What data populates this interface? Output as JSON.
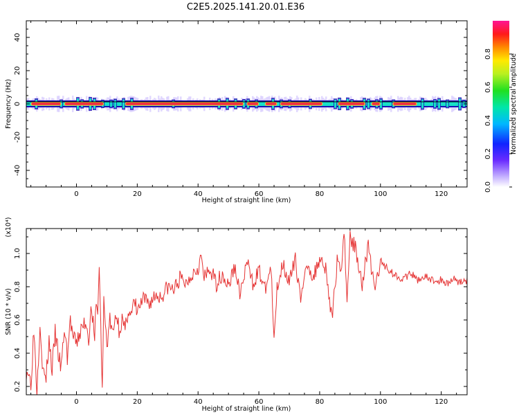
{
  "title": "C2E5.2025.141.20.01.E36",
  "colors": {
    "snr_line": "#e53333",
    "band_base": "#1a12b4",
    "band_mid": "#18e0c8",
    "band_hi": "#ffd12a",
    "band_peak": "#ee2244",
    "halo": "#c9b8ff"
  },
  "chart_data": [
    {
      "type": "heatmap",
      "title": "C2E5.2025.141.20.01.E36",
      "xlabel": "Height of straight line (km)",
      "ylabel": "Frequency (Hz)",
      "xlim": [
        -16.5,
        128.5
      ],
      "ylim": [
        -50,
        50
      ],
      "xticks": [
        0,
        20,
        40,
        60,
        80,
        100,
        120
      ],
      "yticks": [
        -40,
        -20,
        0,
        20,
        40
      ],
      "grid": false,
      "colorbar": {
        "label": "Normalized spectral amplitude",
        "range": [
          0,
          1
        ],
        "ticks": [
          "0.0",
          "0.2",
          "0.4",
          "0.6",
          "0.8"
        ],
        "colormap": "rainbow (violet → blue → cyan → green → yellow → red → magenta)"
      },
      "band_center_hz": 0,
      "peak_segments_km": [
        [
          -15,
          -5
        ],
        [
          -4,
          9
        ],
        [
          16,
          55
        ],
        [
          56,
          60
        ],
        [
          62,
          66
        ],
        [
          67,
          81
        ],
        [
          86,
          95
        ],
        [
          97,
          100
        ],
        [
          104,
          112
        ]
      ]
    },
    {
      "type": "line",
      "xlabel": "Height of straight line (km)",
      "ylabel": "SNR (10 * v/v)",
      "y_multiplier": "(x10⁴)",
      "xlim": [
        -16.5,
        128.5
      ],
      "ylim": [
        0.15,
        1.15
      ],
      "xticks": [
        0,
        20,
        40,
        60,
        80,
        100,
        120
      ],
      "yticks": [
        "0.2",
        "0.4",
        "0.6",
        "0.8",
        "1.0"
      ],
      "grid": false,
      "series": [
        {
          "x": [
            -16,
            -15,
            -14,
            -13,
            -12,
            -11,
            -10,
            -9,
            -8,
            -7,
            -6,
            -5,
            -4,
            -3,
            -2,
            -1,
            0,
            1,
            2,
            3,
            4,
            5,
            6,
            6.5,
            7,
            7.5,
            8,
            8.5,
            9,
            10,
            11,
            12,
            13,
            14,
            15,
            16,
            17,
            18,
            19,
            20,
            22,
            24,
            26,
            28,
            30,
            32,
            34,
            36,
            38,
            40,
            41,
            42,
            44,
            46,
            48,
            50,
            52,
            54,
            56,
            58,
            60,
            62,
            64,
            65,
            66,
            68,
            70,
            72,
            74,
            76,
            78,
            80,
            82,
            84,
            86,
            87,
            88,
            89,
            90,
            92,
            94,
            96,
            98,
            100,
            102,
            104,
            106,
            108,
            110,
            112,
            114,
            116,
            118,
            120,
            122,
            124,
            126,
            128
          ],
          "y": [
            0.3,
            0.22,
            0.55,
            0.18,
            0.6,
            0.28,
            0.25,
            0.48,
            0.3,
            0.52,
            0.4,
            0.3,
            0.55,
            0.38,
            0.6,
            0.48,
            0.45,
            0.52,
            0.55,
            0.6,
            0.5,
            0.68,
            0.45,
            0.75,
            0.6,
            0.95,
            0.55,
            0.18,
            0.7,
            0.45,
            0.6,
            0.5,
            0.65,
            0.55,
            0.6,
            0.52,
            0.68,
            0.62,
            0.7,
            0.65,
            0.72,
            0.7,
            0.75,
            0.74,
            0.8,
            0.78,
            0.85,
            0.82,
            0.88,
            0.92,
            0.98,
            0.85,
            0.9,
            0.82,
            0.88,
            0.8,
            0.92,
            0.75,
            0.95,
            0.82,
            0.9,
            0.78,
            0.92,
            0.45,
            0.8,
            0.95,
            0.82,
            0.96,
            0.72,
            0.95,
            0.85,
            0.98,
            0.92,
            0.6,
            1.0,
            0.88,
            1.15,
            0.72,
            1.1,
            1.02,
            0.82,
            1.05,
            0.78,
            0.95,
            0.92,
            0.88,
            0.86,
            0.85,
            0.88,
            0.84,
            0.86,
            0.85,
            0.83,
            0.84,
            0.82,
            0.85,
            0.83,
            0.84
          ]
        }
      ]
    }
  ]
}
